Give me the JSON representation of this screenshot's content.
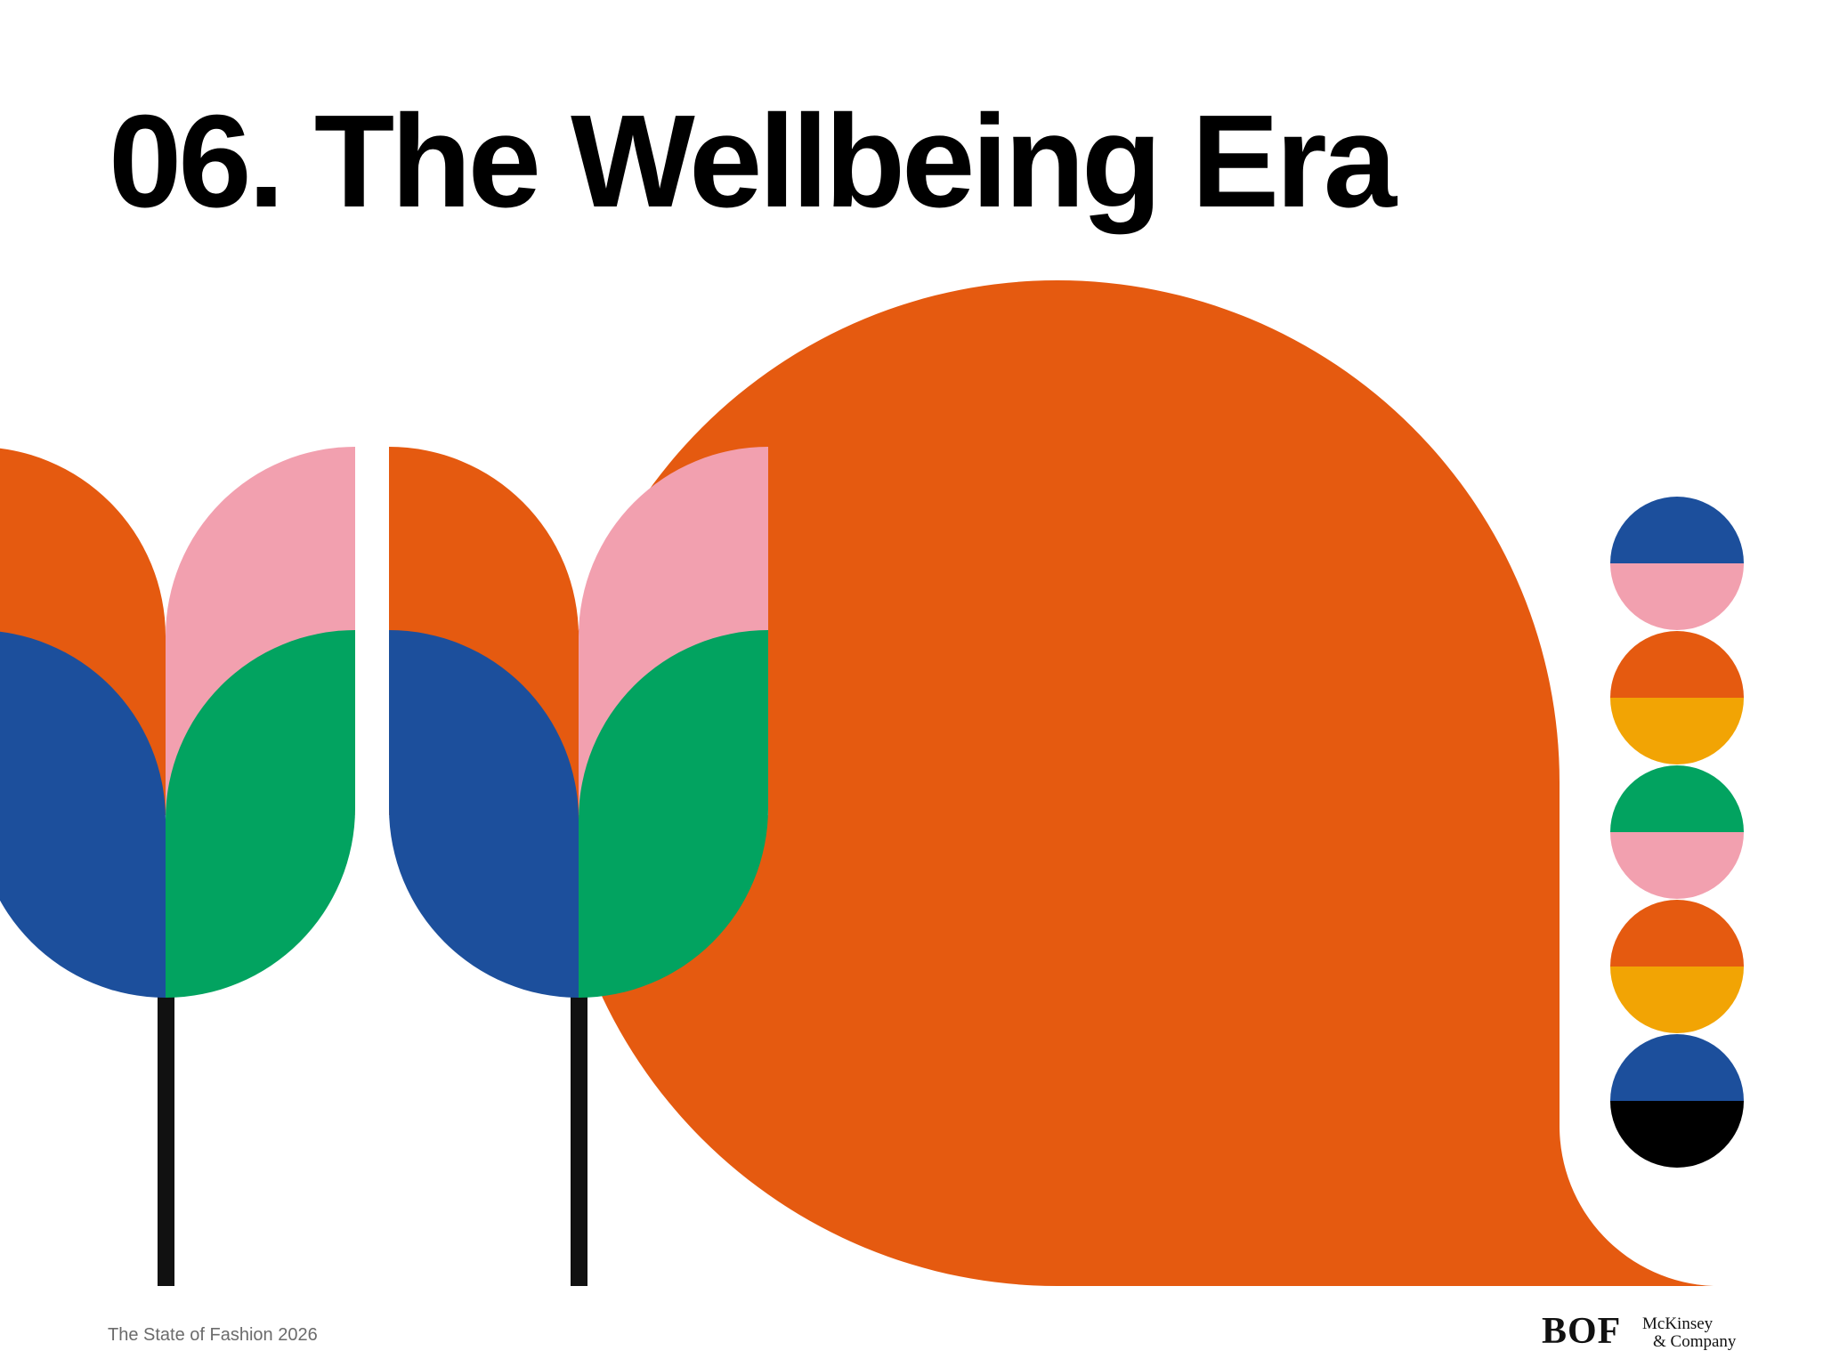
{
  "page": {
    "title": "06. The Wellbeing Era",
    "footer": "The State of Fashion 2026"
  },
  "logos": {
    "bof": "BOF",
    "mckinsey_line1": "McKinsey",
    "mckinsey_line2": "& Company"
  },
  "colors": {
    "orange": "#E55A10",
    "pink": "#F2A0AF",
    "blue": "#1C4F9C",
    "green": "#02A360",
    "yellow": "#F2A404",
    "black": "#000000",
    "stem": "#111111"
  },
  "decoration": {
    "flowers": 2,
    "circle_stack": [
      {
        "top": "blue",
        "bottom": "pink"
      },
      {
        "top": "orange",
        "bottom": "yellow"
      },
      {
        "top": "green",
        "bottom": "pink"
      },
      {
        "top": "orange",
        "bottom": "yellow"
      },
      {
        "top": "blue",
        "bottom": "black"
      }
    ]
  }
}
